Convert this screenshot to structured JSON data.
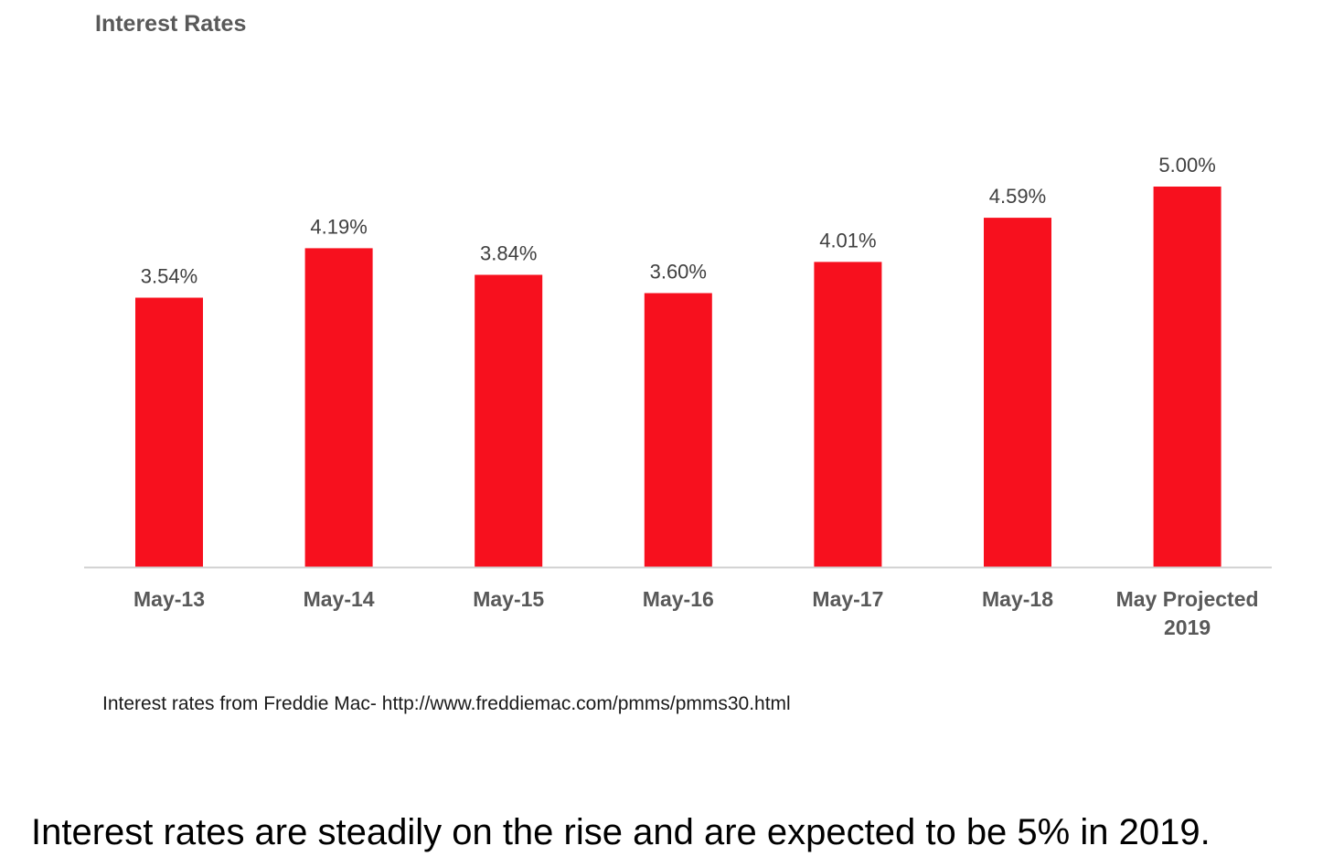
{
  "chart_data": {
    "type": "bar",
    "title": "Interest Rates",
    "categories": [
      "May-13",
      "May-14",
      "May-15",
      "May-16",
      "May-17",
      "May-18",
      "May Projected 2019"
    ],
    "values": [
      3.54,
      4.19,
      3.84,
      3.6,
      4.01,
      4.59,
      5.0
    ],
    "data_labels": [
      "3.54%",
      "4.19%",
      "3.84%",
      "3.60%",
      "4.01%",
      "4.59%",
      "5.00%"
    ],
    "xlabel": "",
    "ylabel": "",
    "ylim": [
      0,
      5.5
    ],
    "grid": false,
    "legend": "none",
    "bar_color": "#f7101e"
  },
  "source_note": "Interest rates from Freddie Mac- http://www.freddiemac.com/pmms/pmms30.html",
  "caption": "Interest rates are steadily on the rise and are expected to be 5% in 2019."
}
